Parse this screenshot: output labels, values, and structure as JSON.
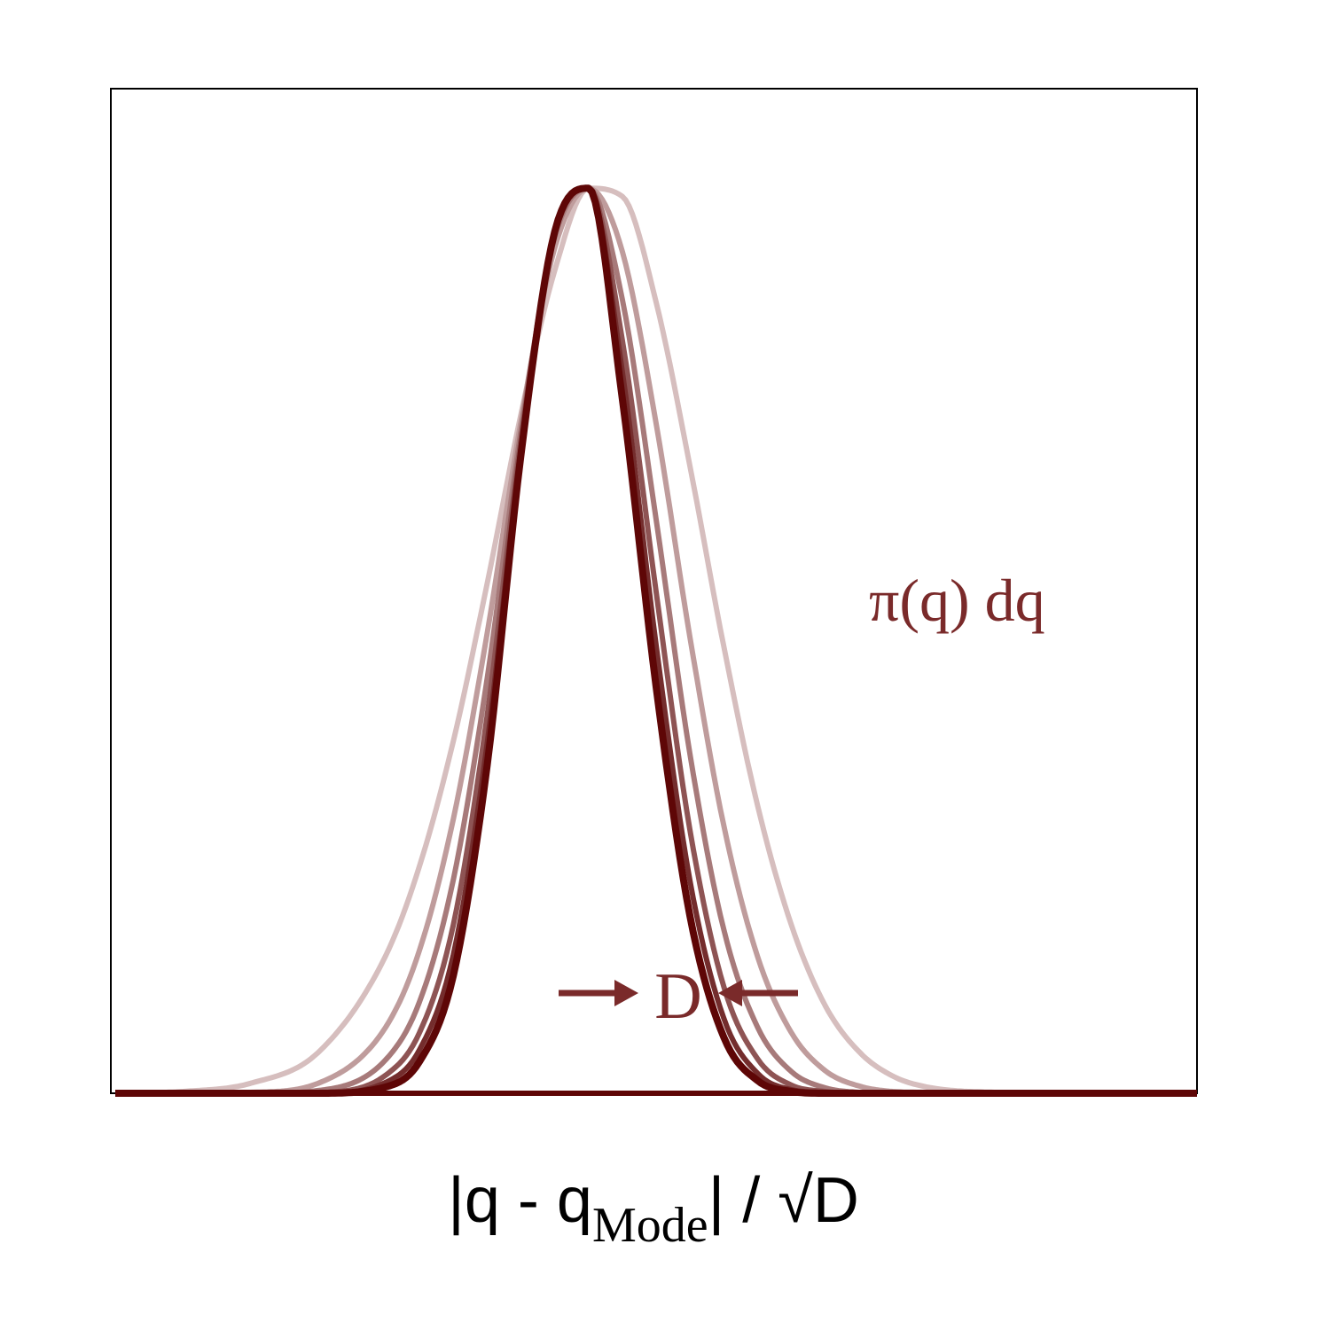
{
  "chart_data": {
    "type": "line",
    "title": "",
    "xlabel": {
      "main": "|q - q",
      "subscript": "Mode",
      "suffix": "| / √D"
    },
    "ylabel": "",
    "annotations": {
      "density_label": "π(q) dq",
      "dimension_label": "D"
    },
    "xlim": [
      -4,
      4
    ],
    "ylim": [
      0,
      1.11
    ],
    "grid": false,
    "legend": "none",
    "x": [
      -4.0,
      -3.5,
      -3.0,
      -2.5,
      -2.0,
      -1.75,
      -1.5,
      -1.25,
      -1.0,
      -0.75,
      -0.5,
      -0.25,
      0.0,
      0.25,
      0.5,
      0.75,
      1.0,
      1.25,
      1.5,
      1.75,
      2.0,
      2.5,
      3.0,
      3.5,
      4.0
    ],
    "series": [
      {
        "color": "#d6bebe",
        "stroke_width": 6,
        "mode": -0.16,
        "values": [
          0.0,
          0.002,
          0.011,
          0.045,
          0.152,
          0.251,
          0.389,
          0.563,
          0.75,
          0.909,
          1.0,
          0.991,
          0.874,
          0.693,
          0.494,
          0.318,
          0.186,
          0.097,
          0.046,
          0.019,
          0.007,
          0.001,
          0.0,
          0.0,
          0.0
        ]
      },
      {
        "color": "#bf9c9c",
        "stroke_width": 6,
        "mode": -0.11,
        "values": [
          0.0,
          0.0,
          0.001,
          0.011,
          0.073,
          0.158,
          0.303,
          0.508,
          0.742,
          0.934,
          1.0,
          0.93,
          0.74,
          0.504,
          0.296,
          0.151,
          0.067,
          0.025,
          0.008,
          0.002,
          0.001,
          0.0,
          0.0,
          0.0,
          0.0
        ]
      },
      {
        "color": "#a77a7a",
        "stroke_width": 6,
        "mode": -0.07,
        "values": [
          0.0,
          0.0,
          0.0,
          0.003,
          0.037,
          0.101,
          0.236,
          0.458,
          0.732,
          0.946,
          1.0,
          0.877,
          0.634,
          0.375,
          0.181,
          0.073,
          0.024,
          0.006,
          0.001,
          0.0,
          0.0,
          0.0,
          0.0,
          0.0,
          0.0
        ]
      },
      {
        "color": "#8e5454",
        "stroke_width": 6,
        "mode": -0.04,
        "values": [
          0.0,
          0.0,
          0.0,
          0.001,
          0.02,
          0.067,
          0.186,
          0.417,
          0.722,
          0.951,
          1.0,
          0.832,
          0.554,
          0.291,
          0.118,
          0.038,
          0.009,
          0.002,
          0.0,
          0.0,
          0.0,
          0.0,
          0.0,
          0.0,
          0.0
        ]
      },
      {
        "color": "#742d2d",
        "stroke_width": 6,
        "mode": -0.02,
        "values": [
          0.0,
          0.0,
          0.0,
          0.0,
          0.012,
          0.048,
          0.153,
          0.386,
          0.713,
          0.952,
          1.0,
          0.797,
          0.495,
          0.235,
          0.083,
          0.022,
          0.004,
          0.001,
          0.0,
          0.0,
          0.0,
          0.0,
          0.0,
          0.0,
          0.0
        ]
      },
      {
        "color": "#5e0606",
        "stroke_width": 8,
        "mode": 0.0,
        "values": [
          0.0,
          0.0,
          0.0,
          0.0,
          0.007,
          0.035,
          0.13,
          0.362,
          0.705,
          0.952,
          1.0,
          0.767,
          0.449,
          0.196,
          0.062,
          0.014,
          0.002,
          0.0,
          0.0,
          0.0,
          0.0,
          0.0,
          0.0,
          0.0,
          0.0
        ]
      }
    ],
    "colors": {
      "frame": "#000000",
      "annotation": "#7a2a2a",
      "axis_label": "#000000",
      "baseline": "#5e0606"
    }
  }
}
